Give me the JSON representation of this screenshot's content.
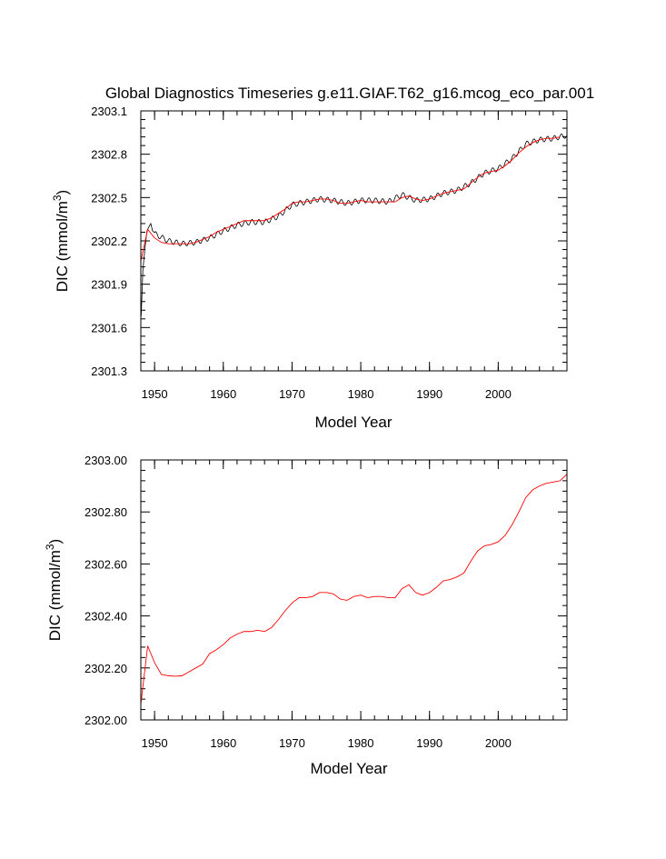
{
  "title": "Global Diagnostics Timeseries g.e11.GIAF.T62_g16.mcog_eco_par.001",
  "chart_data": [
    {
      "type": "line",
      "name": "monthly-and-annual",
      "xlabel": "Model Year",
      "ylabel": "DIC (mmol/m",
      "ylabel_sup": "3",
      "ylabel_end": ")",
      "xlim": [
        1948,
        2010
      ],
      "ylim": [
        2301.3,
        2303.1
      ],
      "xticks": [
        1950,
        1960,
        1970,
        1980,
        1990,
        2000
      ],
      "xtick_labels": [
        "1950",
        "1960",
        "1970",
        "1980",
        "1990",
        "2000"
      ],
      "yticks": [
        2301.3,
        2301.6,
        2301.9,
        2302.2,
        2302.5,
        2302.8,
        2303.1
      ],
      "ytick_labels": [
        "2301.3",
        "2301.6",
        "2301.9",
        "2302.2",
        "2302.5",
        "2302.8",
        "2303.1"
      ],
      "monthly_color": "#000000",
      "annual_color": "#ff0000",
      "seasonal_amplitude": 0.018,
      "monthly_start": [
        [
          1948.05,
          2301.68
        ],
        [
          1948.3,
          2302.0
        ],
        [
          1948.6,
          2302.15
        ],
        [
          1948.9,
          2302.27
        ],
        [
          1949.2,
          2302.3
        ],
        [
          1949.45,
          2302.32
        ],
        [
          1949.7,
          2302.27
        ]
      ],
      "monthly_trend": {
        "x": [
          1950,
          1952,
          1954,
          1956,
          1958,
          1960,
          1962,
          1964,
          1966,
          1968,
          1970,
          1972,
          1974,
          1976,
          1978,
          1980,
          1982,
          1984,
          1986,
          1988,
          1990,
          1992,
          1994,
          1996,
          1998,
          2000,
          2002,
          2004,
          2006,
          2008,
          2009.95
        ],
        "y": [
          2302.25,
          2302.2,
          2302.18,
          2302.19,
          2302.22,
          2302.27,
          2302.31,
          2302.33,
          2302.33,
          2302.37,
          2302.45,
          2302.47,
          2302.49,
          2302.48,
          2302.46,
          2302.48,
          2302.48,
          2302.47,
          2302.52,
          2302.48,
          2302.49,
          2302.53,
          2302.55,
          2302.6,
          2302.67,
          2302.7,
          2302.77,
          2302.87,
          2302.9,
          2302.91,
          2302.93
        ]
      },
      "series": [
        {
          "name": "annual",
          "x": [
            1948,
            1949,
            1950,
            1951,
            1952,
            1953,
            1954,
            1955,
            1956,
            1957,
            1958,
            1959,
            1960,
            1961,
            1962,
            1963,
            1964,
            1965,
            1966,
            1967,
            1968,
            1969,
            1970,
            1971,
            1972,
            1973,
            1974,
            1975,
            1976,
            1977,
            1978,
            1979,
            1980,
            1981,
            1982,
            1983,
            1984,
            1985,
            1986,
            1987,
            1988,
            1989,
            1990,
            1991,
            1992,
            1993,
            1994,
            1995,
            1996,
            1997,
            1998,
            1999,
            2000,
            2001,
            2002,
            2003,
            2004,
            2005,
            2006,
            2007,
            2008,
            2009
          ],
          "y": [
            2302.06,
            2302.28,
            2302.22,
            2302.19,
            2302.18,
            2302.18,
            2302.18,
            2302.18,
            2302.19,
            2302.21,
            2302.23,
            2302.26,
            2302.28,
            2302.3,
            2302.32,
            2302.34,
            2302.34,
            2302.34,
            2302.34,
            2302.36,
            2302.39,
            2302.42,
            2302.46,
            2302.47,
            2302.47,
            2302.48,
            2302.49,
            2302.49,
            2302.48,
            2302.46,
            2302.46,
            2302.47,
            2302.48,
            2302.47,
            2302.47,
            2302.47,
            2302.47,
            2302.47,
            2302.5,
            2302.51,
            2302.49,
            2302.48,
            2302.49,
            2302.51,
            2302.53,
            2302.54,
            2302.55,
            2302.56,
            2302.6,
            2302.64,
            2302.67,
            2302.68,
            2302.69,
            2302.72,
            2302.76,
            2302.81,
            2302.85,
            2302.88,
            2302.9,
            2302.91,
            2302.91,
            2302.92
          ]
        }
      ]
    },
    {
      "type": "line",
      "name": "annual-only",
      "xlabel": "Model Year",
      "ylabel": "DIC (mmol/m",
      "ylabel_sup": "3",
      "ylabel_end": ")",
      "xlim": [
        1948,
        2010
      ],
      "ylim": [
        2302.0,
        2303.0
      ],
      "xticks": [
        1950,
        1960,
        1970,
        1980,
        1990,
        2000
      ],
      "xtick_labels": [
        "1950",
        "1960",
        "1970",
        "1980",
        "1990",
        "2000"
      ],
      "yticks": [
        2302.0,
        2302.2,
        2302.4,
        2302.6,
        2302.8,
        2303.0
      ],
      "ytick_labels": [
        "2302.00",
        "2302.20",
        "2302.40",
        "2302.60",
        "2302.80",
        "2303.00"
      ],
      "annual_color": "#ff0000",
      "series": [
        {
          "name": "annual",
          "x": [
            1948,
            1949,
            1950,
            1951,
            1952,
            1953,
            1954,
            1955,
            1956,
            1957,
            1958,
            1959,
            1960,
            1961,
            1962,
            1963,
            1964,
            1965,
            1966,
            1967,
            1968,
            1969,
            1970,
            1971,
            1972,
            1973,
            1974,
            1975,
            1976,
            1977,
            1978,
            1979,
            1980,
            1981,
            1982,
            1983,
            1984,
            1985,
            1986,
            1987,
            1988,
            1989,
            1990,
            1991,
            1992,
            1993,
            1994,
            1995,
            1996,
            1997,
            1998,
            1999,
            2000,
            2001,
            2002,
            2003,
            2004,
            2005,
            2006,
            2007,
            2008,
            2009,
            2010
          ],
          "y": [
            2302.06,
            2302.285,
            2302.22,
            2302.175,
            2302.17,
            2302.168,
            2302.17,
            2302.185,
            2302.2,
            2302.215,
            2302.255,
            2302.27,
            2302.29,
            2302.315,
            2302.33,
            2302.34,
            2302.34,
            2302.345,
            2302.34,
            2302.355,
            2302.385,
            2302.42,
            2302.45,
            2302.47,
            2302.47,
            2302.475,
            2302.49,
            2302.49,
            2302.485,
            2302.465,
            2302.46,
            2302.475,
            2302.48,
            2302.47,
            2302.475,
            2302.475,
            2302.47,
            2302.47,
            2302.505,
            2302.52,
            2302.49,
            2302.48,
            2302.49,
            2302.51,
            2302.535,
            2302.54,
            2302.55,
            2302.565,
            2302.61,
            2302.65,
            2302.67,
            2302.675,
            2302.685,
            2302.71,
            2302.75,
            2302.8,
            2302.855,
            2302.885,
            2302.9,
            2302.91,
            2302.915,
            2302.92,
            2302.945
          ]
        }
      ]
    }
  ]
}
